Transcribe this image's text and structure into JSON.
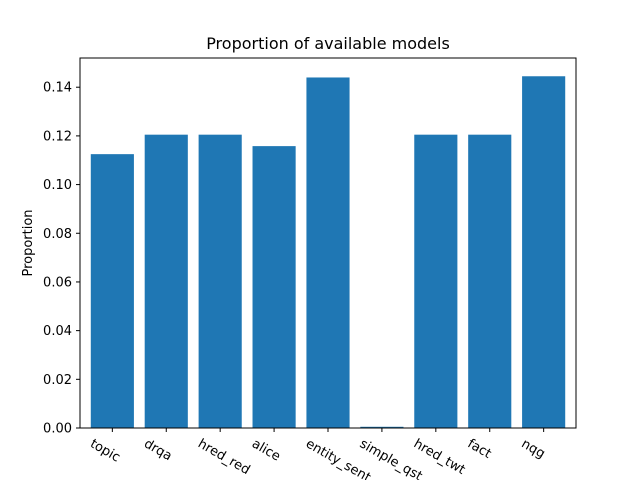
{
  "chart_data": {
    "type": "bar",
    "title": "Proportion of available models",
    "xlabel": "",
    "ylabel": "Proportion",
    "categories": [
      "topic",
      "drqa",
      "hred_red",
      "alice",
      "entity_sent",
      "simple_qst",
      "hred_twt",
      "fact",
      "nqg"
    ],
    "values": [
      0.1125,
      0.1205,
      0.1205,
      0.1158,
      0.144,
      0.0005,
      0.1205,
      0.1205,
      0.1445
    ],
    "ylim": [
      0,
      0.152
    ],
    "yticks": [
      0.0,
      0.02,
      0.04,
      0.06,
      0.08,
      0.1,
      0.12,
      0.14
    ],
    "ytick_labels": [
      "0.00",
      "0.02",
      "0.04",
      "0.06",
      "0.08",
      "0.10",
      "0.12",
      "0.14"
    ],
    "bar_color": "#1f77b4",
    "grid": false,
    "legend": "none"
  }
}
